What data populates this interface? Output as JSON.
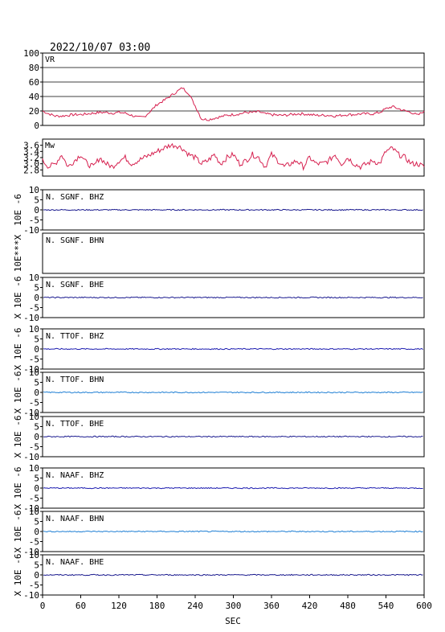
{
  "chart_data": {
    "type": "line",
    "title": "2022/10/07 03:00",
    "xlabel": "SEC",
    "xlim": [
      0,
      600
    ],
    "xticks": [
      "0",
      "60",
      "120",
      "180",
      "240",
      "300",
      "360",
      "420",
      "480",
      "540",
      "600"
    ],
    "panels": [
      {
        "label": "VR",
        "ylim": [
          0,
          100
        ],
        "yticks": [
          "0",
          "20",
          "40",
          "60",
          "80",
          "100"
        ],
        "grid": true,
        "color": "#d6204f",
        "series": {
          "x": [
            0,
            10,
            20,
            30,
            40,
            50,
            60,
            70,
            80,
            90,
            100,
            110,
            120,
            130,
            140,
            150,
            160,
            170,
            180,
            190,
            200,
            210,
            220,
            230,
            240,
            250,
            260,
            270,
            280,
            290,
            300,
            310,
            320,
            330,
            340,
            350,
            360,
            370,
            380,
            390,
            400,
            410,
            420,
            430,
            440,
            450,
            460,
            470,
            480,
            490,
            500,
            510,
            520,
            530,
            540,
            550,
            560,
            570,
            580,
            590,
            600
          ],
          "y": [
            20,
            16,
            13,
            13,
            14,
            15,
            15,
            16,
            17,
            18,
            18,
            17,
            18,
            17,
            14,
            11,
            12,
            20,
            29,
            34,
            40,
            46,
            52,
            44,
            27,
            9,
            8,
            10,
            12,
            14,
            15,
            16,
            18,
            18,
            19,
            16,
            15,
            14,
            14,
            15,
            16,
            16,
            15,
            14,
            14,
            14,
            13,
            14,
            15,
            15,
            16,
            16,
            16,
            18,
            23,
            26,
            23,
            20,
            18,
            14,
            20
          ]
        }
      },
      {
        "label": "Mw",
        "ylim": [
          2.6,
          3.8
        ],
        "yticks": [
          "2.8",
          "3.0",
          "3.2",
          "3.4",
          "3.6"
        ],
        "grid": false,
        "color": "#d6204f",
        "series": {
          "x": [
            0,
            10,
            20,
            30,
            40,
            50,
            60,
            70,
            80,
            90,
            100,
            110,
            120,
            130,
            140,
            150,
            160,
            170,
            180,
            190,
            200,
            210,
            220,
            230,
            240,
            250,
            260,
            270,
            280,
            290,
            300,
            310,
            320,
            330,
            340,
            350,
            360,
            370,
            380,
            390,
            400,
            410,
            420,
            430,
            440,
            450,
            460,
            470,
            480,
            490,
            500,
            510,
            520,
            530,
            540,
            550,
            560,
            570,
            580,
            590,
            600
          ],
          "y": [
            3.1,
            2.9,
            3.0,
            3.3,
            2.9,
            3.1,
            3.3,
            3.0,
            2.9,
            3.2,
            3.0,
            2.9,
            3.1,
            3.2,
            3.0,
            3.1,
            3.2,
            3.3,
            3.4,
            3.5,
            3.6,
            3.6,
            3.5,
            3.3,
            3.2,
            3.0,
            3.1,
            3.3,
            3.0,
            3.2,
            3.3,
            3.0,
            3.1,
            3.3,
            3.2,
            2.9,
            3.3,
            3.1,
            2.9,
            3.0,
            3.1,
            2.9,
            3.2,
            3.0,
            3.0,
            3.1,
            3.3,
            3.0,
            3.2,
            3.0,
            2.9,
            3.0,
            3.1,
            3.0,
            3.4,
            3.5,
            3.3,
            3.2,
            3.0,
            3.0,
            2.9
          ]
        }
      },
      {
        "station": "N. SGNF. BHZ",
        "ylabel": "10E -6",
        "ylim": [
          -10,
          10
        ],
        "yticks": [
          "10",
          "5",
          "0",
          "-5",
          "-10"
        ],
        "color": "#1b1b8f",
        "series": {
          "x": [
            0,
            600
          ],
          "y": [
            0,
            0
          ]
        }
      },
      {
        "station": "N. SGNF. BHN",
        "ylabel": "10E***X",
        "ylim": [
          -10,
          10
        ],
        "yticks": [],
        "color": "#1b1b8f",
        "series": null
      },
      {
        "station": "N. SGNF. BHE",
        "ylabel": "X 10E -6",
        "ylim": [
          -10,
          10
        ],
        "yticks": [
          "10",
          "5",
          "0",
          "-5",
          "-10"
        ],
        "color": "#1b1b8f",
        "series": {
          "x": [
            0,
            600
          ],
          "y": [
            0,
            0
          ]
        }
      },
      {
        "station": "N. TTOF. BHZ",
        "ylabel": "X 10E -6",
        "ylim": [
          -10,
          10
        ],
        "yticks": [
          "10",
          "5",
          "0",
          "-5",
          "-10"
        ],
        "color": "#1c1cb0",
        "series": {
          "x": [
            0,
            600
          ],
          "y": [
            0,
            0
          ]
        }
      },
      {
        "station": "N. TTOF. BHN",
        "ylabel": "X 10E -6",
        "ylim": [
          -10,
          10
        ],
        "yticks": [
          "10",
          "5",
          "0",
          "-5",
          "-10"
        ],
        "color": "#1f7fd4",
        "series": {
          "x": [
            0,
            600
          ],
          "y": [
            0,
            0
          ]
        }
      },
      {
        "station": "N. TTOF. BHE",
        "ylabel": "X 10E -6",
        "ylim": [
          -10,
          10
        ],
        "yticks": [
          "10",
          "5",
          "0",
          "-5",
          "-10"
        ],
        "color": "#1b1b8f",
        "series": {
          "x": [
            0,
            600
          ],
          "y": [
            0,
            0
          ]
        }
      },
      {
        "station": "N. NAAF. BHZ",
        "ylabel": "X 10E -6",
        "ylim": [
          -10,
          10
        ],
        "yticks": [
          "10",
          "5",
          "0",
          "-5",
          "-10"
        ],
        "color": "#1c1cb0",
        "series": {
          "x": [
            0,
            600
          ],
          "y": [
            0,
            0
          ]
        }
      },
      {
        "station": "N. NAAF. BHN",
        "ylabel": "X 10E -6",
        "ylim": [
          -10,
          10
        ],
        "yticks": [
          "10",
          "5",
          "0",
          "-5",
          "-10"
        ],
        "color": "#1f7fd4",
        "series": {
          "x": [
            0,
            600
          ],
          "y": [
            0,
            0
          ]
        }
      },
      {
        "station": "N. NAAF. BHE",
        "ylabel": "X 10E -6",
        "ylim": [
          -10,
          10
        ],
        "yticks": [
          "10",
          "5",
          "0",
          "-5",
          "-10"
        ],
        "color": "#1b1b8f",
        "series": {
          "x": [
            0,
            600
          ],
          "y": [
            0,
            0
          ]
        }
      }
    ]
  }
}
